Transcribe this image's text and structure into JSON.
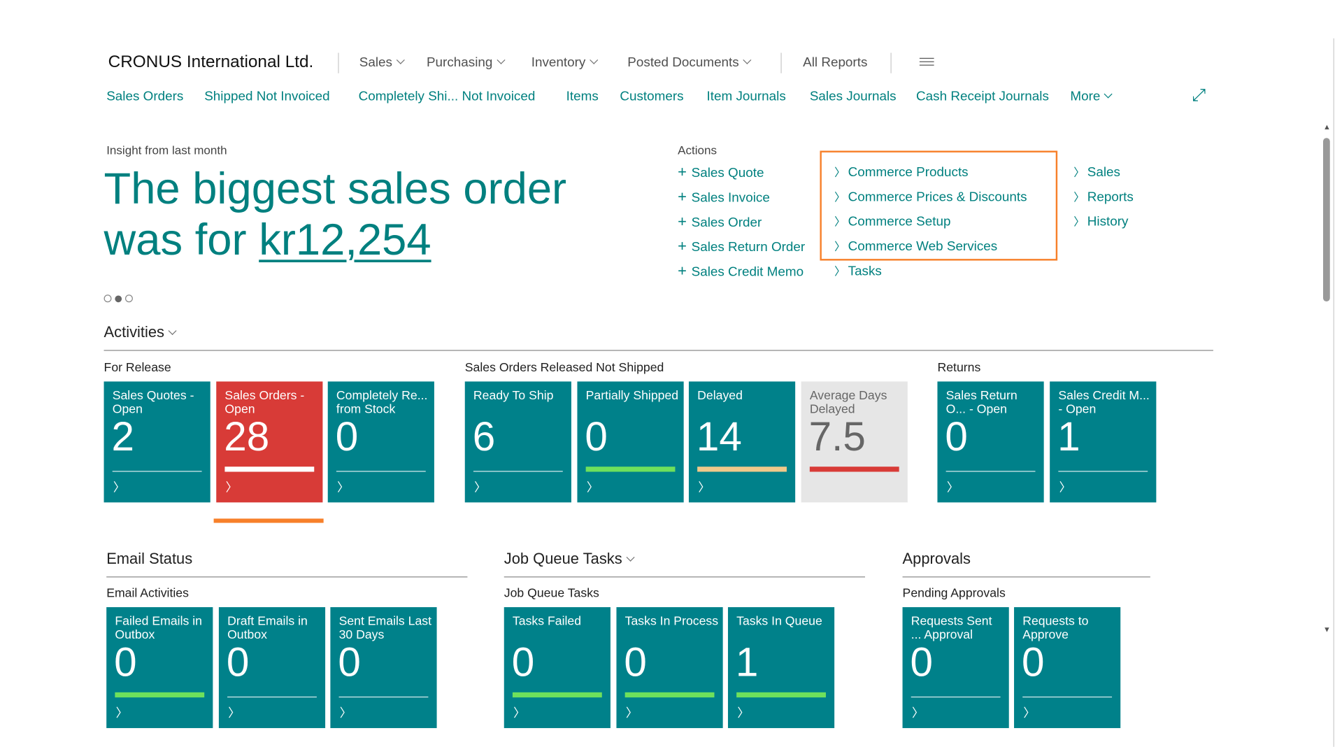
{
  "header": {
    "company": "CRONUS International Ltd.",
    "menus": [
      "Sales",
      "Purchasing",
      "Inventory",
      "Posted Documents"
    ],
    "all_reports": "All Reports",
    "hamburger_icon": "hamburger-icon"
  },
  "nav": {
    "links": [
      "Sales Orders",
      "Shipped Not Invoiced",
      "Completely Shi... Not Invoiced",
      "Items",
      "Customers",
      "Item Journals",
      "Sales Journals",
      "Cash Receipt Journals"
    ],
    "more": "More"
  },
  "insight": {
    "label": "Insight from last month",
    "headline": "The biggest sales order was for ",
    "amount": "kr12,254",
    "page_index": 2,
    "page_count": 3
  },
  "actions": {
    "label": "Actions",
    "new": [
      "Sales Quote",
      "Sales Invoice",
      "Sales Order",
      "Sales Return Order",
      "Sales Credit Memo"
    ],
    "col2": [
      "Commerce Products",
      "Commerce Prices & Discounts",
      "Commerce Setup",
      "Commerce Web Services",
      "Tasks"
    ],
    "col3": [
      "Sales",
      "Reports",
      "History"
    ],
    "highlight_color": "#f7802a"
  },
  "activities": {
    "title": "Activities",
    "groups": [
      {
        "label": "For Release",
        "tiles": [
          {
            "title": "Sales Quotes - Open",
            "value": "2"
          },
          {
            "title": "Sales Orders - Open",
            "value": "28"
          },
          {
            "title": "Completely Re... from Stock",
            "value": "0"
          }
        ]
      },
      {
        "label": "Sales Orders Released Not Shipped",
        "tiles": [
          {
            "title": "Ready To Ship",
            "value": "6"
          },
          {
            "title": "Partially Shipped",
            "value": "0"
          },
          {
            "title": "Delayed",
            "value": "14"
          },
          {
            "title": "Average Days Delayed",
            "value": "7.5"
          }
        ]
      },
      {
        "label": "Returns",
        "tiles": [
          {
            "title": "Sales Return O... - Open",
            "value": "0"
          },
          {
            "title": "Sales Credit M... - Open",
            "value": "1"
          }
        ]
      }
    ]
  },
  "email": {
    "title": "Email Status",
    "group": "Email Activities",
    "tiles": [
      {
        "title": "Failed Emails in Outbox",
        "value": "0"
      },
      {
        "title": "Draft Emails in Outbox",
        "value": "0"
      },
      {
        "title": "Sent Emails Last 30 Days",
        "value": "0"
      }
    ]
  },
  "jobqueue": {
    "title": "Job Queue Tasks",
    "group": "Job Queue Tasks",
    "tiles": [
      {
        "title": "Tasks Failed",
        "value": "0"
      },
      {
        "title": "Tasks In Process",
        "value": "0"
      },
      {
        "title": "Tasks In Queue",
        "value": "1"
      }
    ]
  },
  "approvals": {
    "title": "Approvals",
    "group": "Pending Approvals",
    "tiles": [
      {
        "title": "Requests Sent ... Approval",
        "value": "0"
      },
      {
        "title": "Requests to Approve",
        "value": "0"
      }
    ]
  },
  "colors": {
    "teal": "#00818a",
    "red": "#d83b37",
    "green": "#6ee05c",
    "amber": "#f0c98a",
    "orange": "#f7802a"
  }
}
